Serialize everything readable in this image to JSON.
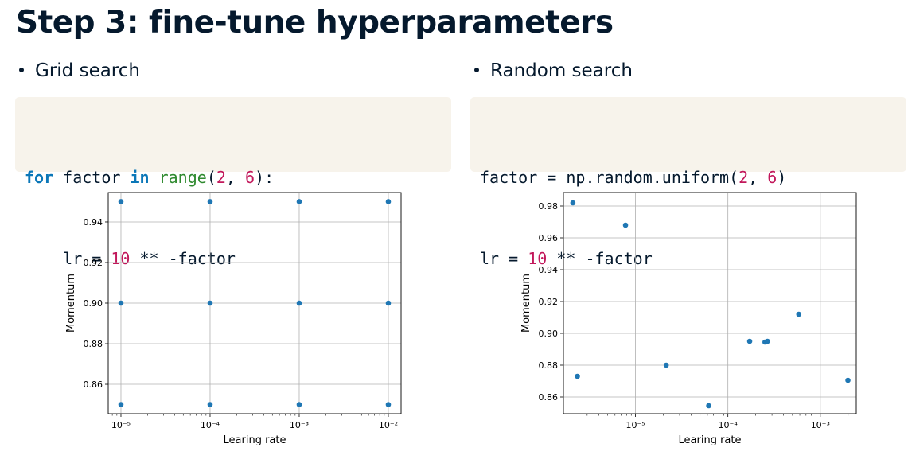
{
  "slide": {
    "title": "Step 3: fine-tune hyperparameters",
    "left_bullet": "Grid search",
    "right_bullet": "Random search"
  },
  "left_code": {
    "line1": {
      "kw1": "for",
      "t1": " factor ",
      "kw2": "in",
      "t2": " ",
      "fn": "range",
      "t3": "(",
      "n1": "2",
      "t4": ", ",
      "n2": "6",
      "t5": "):"
    },
    "line2": {
      "t1": "    lr = ",
      "n1": "10",
      "t2": " ** -factor"
    }
  },
  "right_code": {
    "line1": {
      "t1": "factor = np.random.uniform(",
      "n1": "2",
      "t2": ", ",
      "n2": "6",
      "t3": ")"
    },
    "line2": {
      "t1": "lr = ",
      "n1": "10",
      "t2": " ** -factor"
    }
  },
  "colors": {
    "marker": "#1f77b4",
    "grid": "#b0b0b0",
    "code_background": "#f7f3eb",
    "keyword": "#0b77b8",
    "builtin": "#2f8a2f",
    "number": "#c2185b"
  },
  "chart_data": [
    {
      "type": "scatter",
      "xlabel": "Learing rate",
      "ylabel": "Momentum",
      "xscale": "log",
      "xlim": [
        7.2e-06,
        0.0139
      ],
      "ylim": [
        0.8455,
        0.9545
      ],
      "xticks": [
        {
          "value": 1e-05,
          "label": "10⁻⁵"
        },
        {
          "value": 0.0001,
          "label": "10⁻⁴"
        },
        {
          "value": 0.001,
          "label": "10⁻³"
        },
        {
          "value": 0.01,
          "label": "10⁻²"
        }
      ],
      "yticks": [
        {
          "value": 0.86,
          "label": "0.86"
        },
        {
          "value": 0.88,
          "label": "0.88"
        },
        {
          "value": 0.9,
          "label": "0.90"
        },
        {
          "value": 0.92,
          "label": "0.92"
        },
        {
          "value": 0.94,
          "label": "0.94"
        }
      ],
      "grid": true,
      "points": [
        {
          "x": 1e-05,
          "y": 0.95
        },
        {
          "x": 0.0001,
          "y": 0.95
        },
        {
          "x": 0.001,
          "y": 0.95
        },
        {
          "x": 0.01,
          "y": 0.95
        },
        {
          "x": 1e-05,
          "y": 0.9
        },
        {
          "x": 0.0001,
          "y": 0.9
        },
        {
          "x": 0.001,
          "y": 0.9
        },
        {
          "x": 0.01,
          "y": 0.9
        },
        {
          "x": 1e-05,
          "y": 0.85
        },
        {
          "x": 0.0001,
          "y": 0.85
        },
        {
          "x": 0.001,
          "y": 0.85
        },
        {
          "x": 0.01,
          "y": 0.85
        }
      ]
    },
    {
      "type": "scatter",
      "xlabel": "Learing rate",
      "ylabel": "Momentum",
      "xscale": "log",
      "xlim": [
        1.66e-06,
        0.00245
      ],
      "ylim": [
        0.8495,
        0.9885
      ],
      "xticks": [
        {
          "value": 1e-05,
          "label": "10⁻⁵"
        },
        {
          "value": 0.0001,
          "label": "10⁻⁴"
        },
        {
          "value": 0.001,
          "label": "10⁻³"
        }
      ],
      "yticks": [
        {
          "value": 0.86,
          "label": "0.86"
        },
        {
          "value": 0.88,
          "label": "0.88"
        },
        {
          "value": 0.9,
          "label": "0.90"
        },
        {
          "value": 0.92,
          "label": "0.92"
        },
        {
          "value": 0.94,
          "label": "0.94"
        },
        {
          "value": 0.96,
          "label": "0.96"
        },
        {
          "value": 0.98,
          "label": "0.98"
        }
      ],
      "grid": true,
      "points": [
        {
          "x": 2.1e-06,
          "y": 0.982
        },
        {
          "x": 2.35e-06,
          "y": 0.873
        },
        {
          "x": 7.8e-06,
          "y": 0.968
        },
        {
          "x": 2.15e-05,
          "y": 0.88
        },
        {
          "x": 6.2e-05,
          "y": 0.8545
        },
        {
          "x": 0.000172,
          "y": 0.895
        },
        {
          "x": 0.000252,
          "y": 0.8945
        },
        {
          "x": 0.000268,
          "y": 0.895
        },
        {
          "x": 0.000585,
          "y": 0.912
        },
        {
          "x": 0.00199,
          "y": 0.8705
        }
      ]
    }
  ]
}
